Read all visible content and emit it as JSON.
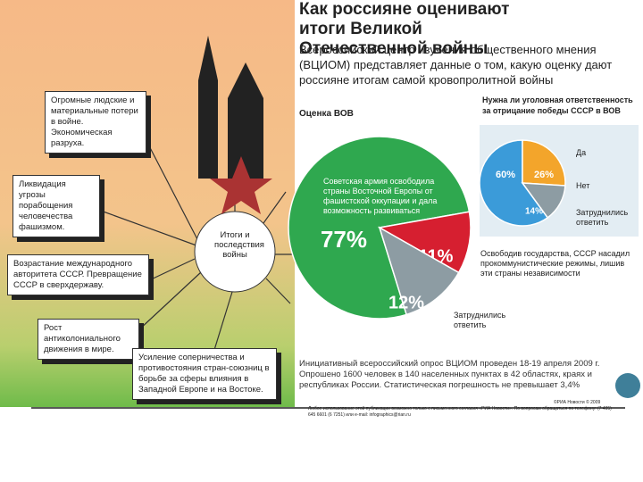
{
  "diagram": {
    "center": "Итоги и последствия войны",
    "boxes": [
      "Огромные людские и материальные потери в войне. Экономическая разруха.",
      "Ликвидация угрозы порабощения человечества фашизмом.",
      "Возрастание международного авторитета СССР. Превращение СССР в сверхдержаву.",
      "Рост антиколониального движения в мире.",
      "Усиление соперничества и противостояния стран-союзниц в борьбе за сферы влияния в Западной Европе и на Востоке."
    ]
  },
  "infographic": {
    "title": "Как россияне оценивают итоги Великой Отечественной войны",
    "subtitle": "Всероссийский центр изучения общественного мнения (ВЦИОМ) представляет данные о том, какую оценку дают россияне итогам самой кровопролитной войны",
    "footnote": "Инициативный всероссийский опрос ВЦИОМ проведен 18-19 апреля 2009 г. Опрошено 1600 человек в 140 населенных пунктах в 42 областях, краях и республиках России. Статистическая погрешность не превышает 3,4%",
    "credit": "©РИА Новости © 2009",
    "disclaimer": "Любое использование этой публикации возможно только с письменного согласия «РИА Новости». По вопросам обращаться по телефону: (7 495) 645 6601 (6 7251) или e-mail: infographics@rian.ru"
  },
  "chart_data": [
    {
      "type": "pie",
      "title": "Оценка ВОВ",
      "categories": [
        "Советская армия освободила страны Восточной Европы от фашистской оккупации и дала возможность развиваться",
        "Освободив государства, СССР насадил прокоммунистические режимы, лишив эти страны независимости",
        "Затруднились ответить"
      ],
      "values": [
        77,
        11,
        12
      ],
      "value_labels": [
        "77%",
        "11%",
        "12%"
      ],
      "colors": [
        "#2fa84f",
        "#d61f30",
        "#8d9ca3"
      ]
    },
    {
      "type": "pie",
      "title": "Нужна ли уголовная ответственность за отрицание победы СССР в ВОВ",
      "categories": [
        "Да",
        "Нет",
        "Затруднились ответить"
      ],
      "values": [
        60,
        26,
        14
      ],
      "value_labels": [
        "60%",
        "26%",
        "14%"
      ],
      "colors": [
        "#3b9bd9",
        "#f3a52b",
        "#8d9ca3"
      ]
    }
  ]
}
